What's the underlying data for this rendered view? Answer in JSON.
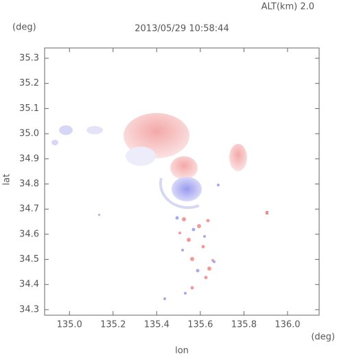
{
  "chart_data": {
    "type": "map",
    "title": "2013/05/29 10:58:44",
    "subtitle": "ALT(km)  2.0",
    "x_label": "lon",
    "y_label": "lat",
    "x_unit": "(deg)",
    "y_unit": "(deg)",
    "xlim": [
      134.886,
      136.145
    ],
    "ylim": [
      34.278,
      35.341
    ],
    "xticks": [
      {
        "value": 135,
        "label": "135.0"
      },
      135.2,
      135.4,
      135.6,
      135.8,
      {
        "value": 136,
        "label": "136.0"
      }
    ],
    "yticks": [
      34.3,
      34.4,
      34.5,
      34.6,
      34.7,
      34.8,
      34.9,
      {
        "value": 35,
        "label": "35.0"
      },
      35.1,
      35.2,
      35.3
    ],
    "grid": false
  }
}
